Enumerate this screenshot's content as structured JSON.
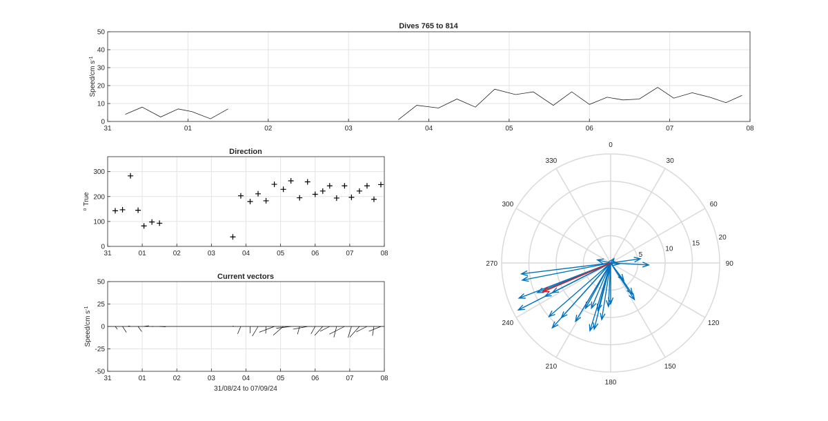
{
  "colors": {
    "axis": "#262626",
    "grid": "#e3e3e3",
    "polar_grid": "#d9d9d9",
    "vector": "#0072bd",
    "mean_vector": "#c1272d",
    "line": "#1f1f1f"
  },
  "panels": {
    "speed": {
      "title": "Dives 765 to 814",
      "ylabel": "Speed/cm s",
      "ylabel_sup": "-1"
    },
    "direction": {
      "title": "Direction",
      "ylabel": "True",
      "ylabel_prefix": "o"
    },
    "vectors": {
      "title": "Current vectors",
      "ylabel": "Speed/cm s",
      "ylabel_sup": "-1",
      "xlabel": "31/08/24 to 07/09/24"
    }
  },
  "chart_data": [
    {
      "id": "speed",
      "type": "line",
      "title": "Dives 765 to 814",
      "xlim": [
        0,
        8
      ],
      "ylim": [
        0,
        50
      ],
      "xticks": [
        0,
        1,
        2,
        3,
        4,
        5,
        6,
        7,
        8
      ],
      "xticklabels": [
        "31",
        "01",
        "02",
        "03",
        "04",
        "05",
        "06",
        "07",
        "08"
      ],
      "yticks": [
        0,
        10,
        20,
        30,
        40,
        50
      ],
      "grid": true,
      "segments": [
        [
          [
            0.22,
            4
          ],
          [
            0.43,
            8
          ],
          [
            0.66,
            2.5
          ],
          [
            0.88,
            7
          ],
          [
            1.05,
            5.5
          ],
          [
            1.28,
            1.5
          ],
          [
            1.5,
            7
          ]
        ],
        [
          [
            3.62,
            1
          ],
          [
            3.85,
            9
          ],
          [
            4.12,
            7.5
          ],
          [
            4.35,
            12.5
          ],
          [
            4.58,
            8
          ],
          [
            4.82,
            18
          ],
          [
            5.08,
            15
          ],
          [
            5.3,
            16.5
          ],
          [
            5.55,
            9
          ],
          [
            5.78,
            16.5
          ],
          [
            6.0,
            9.5
          ],
          [
            6.22,
            13.5
          ],
          [
            6.42,
            12
          ],
          [
            6.62,
            12.5
          ],
          [
            6.85,
            19
          ],
          [
            7.05,
            13
          ],
          [
            7.28,
            16
          ],
          [
            7.5,
            13.5
          ],
          [
            7.7,
            10.5
          ],
          [
            7.9,
            14.5
          ]
        ]
      ]
    },
    {
      "id": "direction",
      "type": "scatter",
      "title": "Direction",
      "xlim": [
        0,
        8
      ],
      "ylim": [
        0,
        360
      ],
      "xticks": [
        0,
        1,
        2,
        3,
        4,
        5,
        6,
        7,
        8
      ],
      "xticklabels": [
        "31",
        "01",
        "02",
        "03",
        "04",
        "05",
        "06",
        "07",
        "08"
      ],
      "yticks": [
        0,
        100,
        200,
        300
      ],
      "grid": true,
      "points": [
        [
          0.22,
          143
        ],
        [
          0.43,
          147
        ],
        [
          0.66,
          283
        ],
        [
          0.88,
          145
        ],
        [
          1.05,
          82
        ],
        [
          1.28,
          98
        ],
        [
          1.5,
          93
        ],
        [
          3.62,
          38
        ],
        [
          3.85,
          203
        ],
        [
          4.12,
          180
        ],
        [
          4.35,
          211
        ],
        [
          4.58,
          183
        ],
        [
          4.82,
          249
        ],
        [
          5.08,
          229
        ],
        [
          5.3,
          263
        ],
        [
          5.55,
          195
        ],
        [
          5.78,
          259
        ],
        [
          6.0,
          209
        ],
        [
          6.22,
          222
        ],
        [
          6.42,
          243
        ],
        [
          6.62,
          194
        ],
        [
          6.85,
          243
        ],
        [
          7.05,
          197
        ],
        [
          7.28,
          222
        ],
        [
          7.5,
          243
        ],
        [
          7.7,
          189
        ],
        [
          7.9,
          248
        ]
      ]
    },
    {
      "id": "vectors",
      "type": "line",
      "title": "Current vectors",
      "xlim": [
        0,
        8
      ],
      "ylim": [
        -50,
        50
      ],
      "xticks": [
        0,
        1,
        2,
        3,
        4,
        5,
        6,
        7,
        8
      ],
      "xticklabels": [
        "31",
        "01",
        "02",
        "03",
        "04",
        "05",
        "06",
        "07",
        "08"
      ],
      "yticks": [
        -50,
        -25,
        0,
        25,
        50
      ],
      "grid": true,
      "x_origins": [
        0.22,
        0.43,
        0.66,
        0.88,
        1.05,
        1.28,
        1.5,
        3.62,
        3.85,
        4.12,
        4.35,
        4.58,
        4.82,
        5.08,
        5.3,
        5.55,
        5.78,
        6.0,
        6.22,
        6.42,
        6.62,
        6.85,
        7.05,
        7.28,
        7.5,
        7.7,
        7.9
      ]
    },
    {
      "id": "polar",
      "type": "scatter",
      "theta_ticks": [
        0,
        30,
        60,
        90,
        120,
        150,
        180,
        210,
        240,
        270,
        300,
        330
      ],
      "r_ticks": [
        5,
        10,
        15,
        20
      ],
      "rlim": [
        0,
        20
      ],
      "direction": "clockwise",
      "zero_location": "top",
      "mean_vector": {
        "direction": 247,
        "speed": 13.5
      }
    }
  ]
}
